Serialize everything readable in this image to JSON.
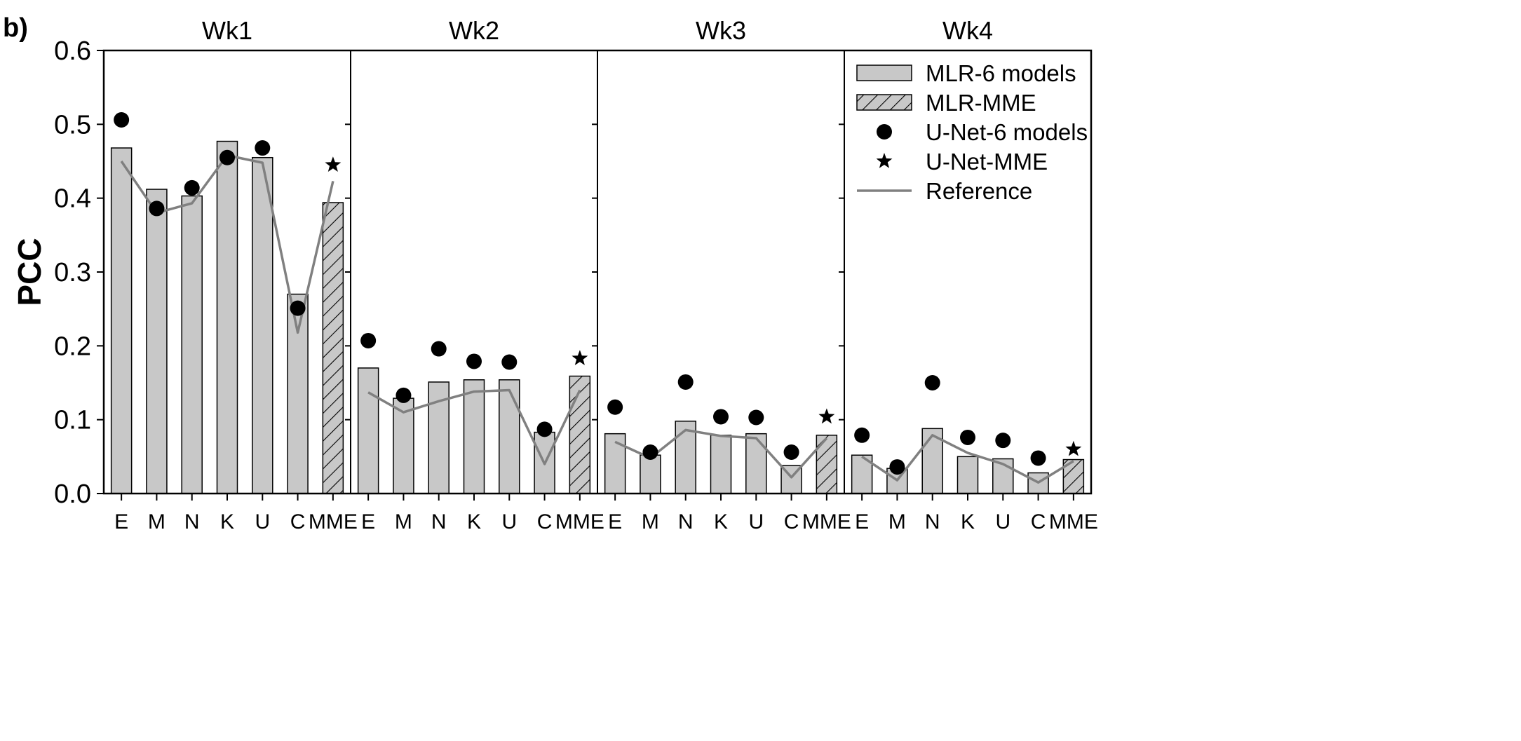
{
  "panel_label": "b)",
  "chart_data": {
    "type": "bar",
    "ylabel": "PCC",
    "ylim": [
      0,
      0.6
    ],
    "yticks": [
      "0.0",
      "0.1",
      "0.2",
      "0.3",
      "0.4",
      "0.5",
      "0.6"
    ],
    "categories": [
      "E",
      "M",
      "N",
      "K",
      "U",
      "C",
      "MME"
    ],
    "colors": {
      "bar_fill": "#c8c8c8",
      "bar_stroke": "#000000",
      "marker": "#000000",
      "reference_line": "#808080",
      "hatch": "#000000"
    },
    "legend": {
      "placement": "top-right",
      "entries": [
        {
          "key": "mlr6",
          "label": "MLR-6 models"
        },
        {
          "key": "mlrmme",
          "label": "MLR-MME"
        },
        {
          "key": "unet6",
          "label": "U-Net-6 models"
        },
        {
          "key": "unetmme",
          "label": "U-Net-MME"
        },
        {
          "key": "ref",
          "label": "Reference"
        }
      ]
    },
    "panels": [
      {
        "title": "Wk1",
        "mlr_6_models": [
          0.468,
          0.412,
          0.403,
          0.477,
          0.455,
          0.27
        ],
        "mlr_mme": 0.394,
        "unet_6_models": [
          0.506,
          0.386,
          0.414,
          0.455,
          0.468,
          0.251
        ],
        "unet_mme": 0.445,
        "reference": [
          0.45,
          0.38,
          0.393,
          0.458,
          0.448,
          0.218,
          0.423
        ]
      },
      {
        "title": "Wk2",
        "mlr_6_models": [
          0.17,
          0.129,
          0.151,
          0.154,
          0.154,
          0.083
        ],
        "mlr_mme": 0.159,
        "unet_6_models": [
          0.207,
          0.133,
          0.196,
          0.179,
          0.178,
          0.087
        ],
        "unet_mme": 0.183,
        "reference": [
          0.137,
          0.11,
          0.125,
          0.138,
          0.14,
          0.04,
          0.14
        ]
      },
      {
        "title": "Wk3",
        "mlr_6_models": [
          0.081,
          0.052,
          0.098,
          0.079,
          0.081,
          0.038
        ],
        "mlr_mme": 0.079,
        "unet_6_models": [
          0.117,
          0.056,
          0.151,
          0.104,
          0.103,
          0.056
        ],
        "unet_mme": 0.104,
        "reference": [
          0.07,
          0.048,
          0.086,
          0.078,
          0.075,
          0.022,
          0.075
        ]
      },
      {
        "title": "Wk4",
        "mlr_6_models": [
          0.052,
          0.034,
          0.088,
          0.05,
          0.047,
          0.028
        ],
        "mlr_mme": 0.046,
        "unet_6_models": [
          0.079,
          0.036,
          0.15,
          0.076,
          0.072,
          0.048
        ],
        "unet_mme": 0.06,
        "reference": [
          0.05,
          0.018,
          0.079,
          0.055,
          0.04,
          0.015,
          0.044
        ]
      }
    ]
  }
}
